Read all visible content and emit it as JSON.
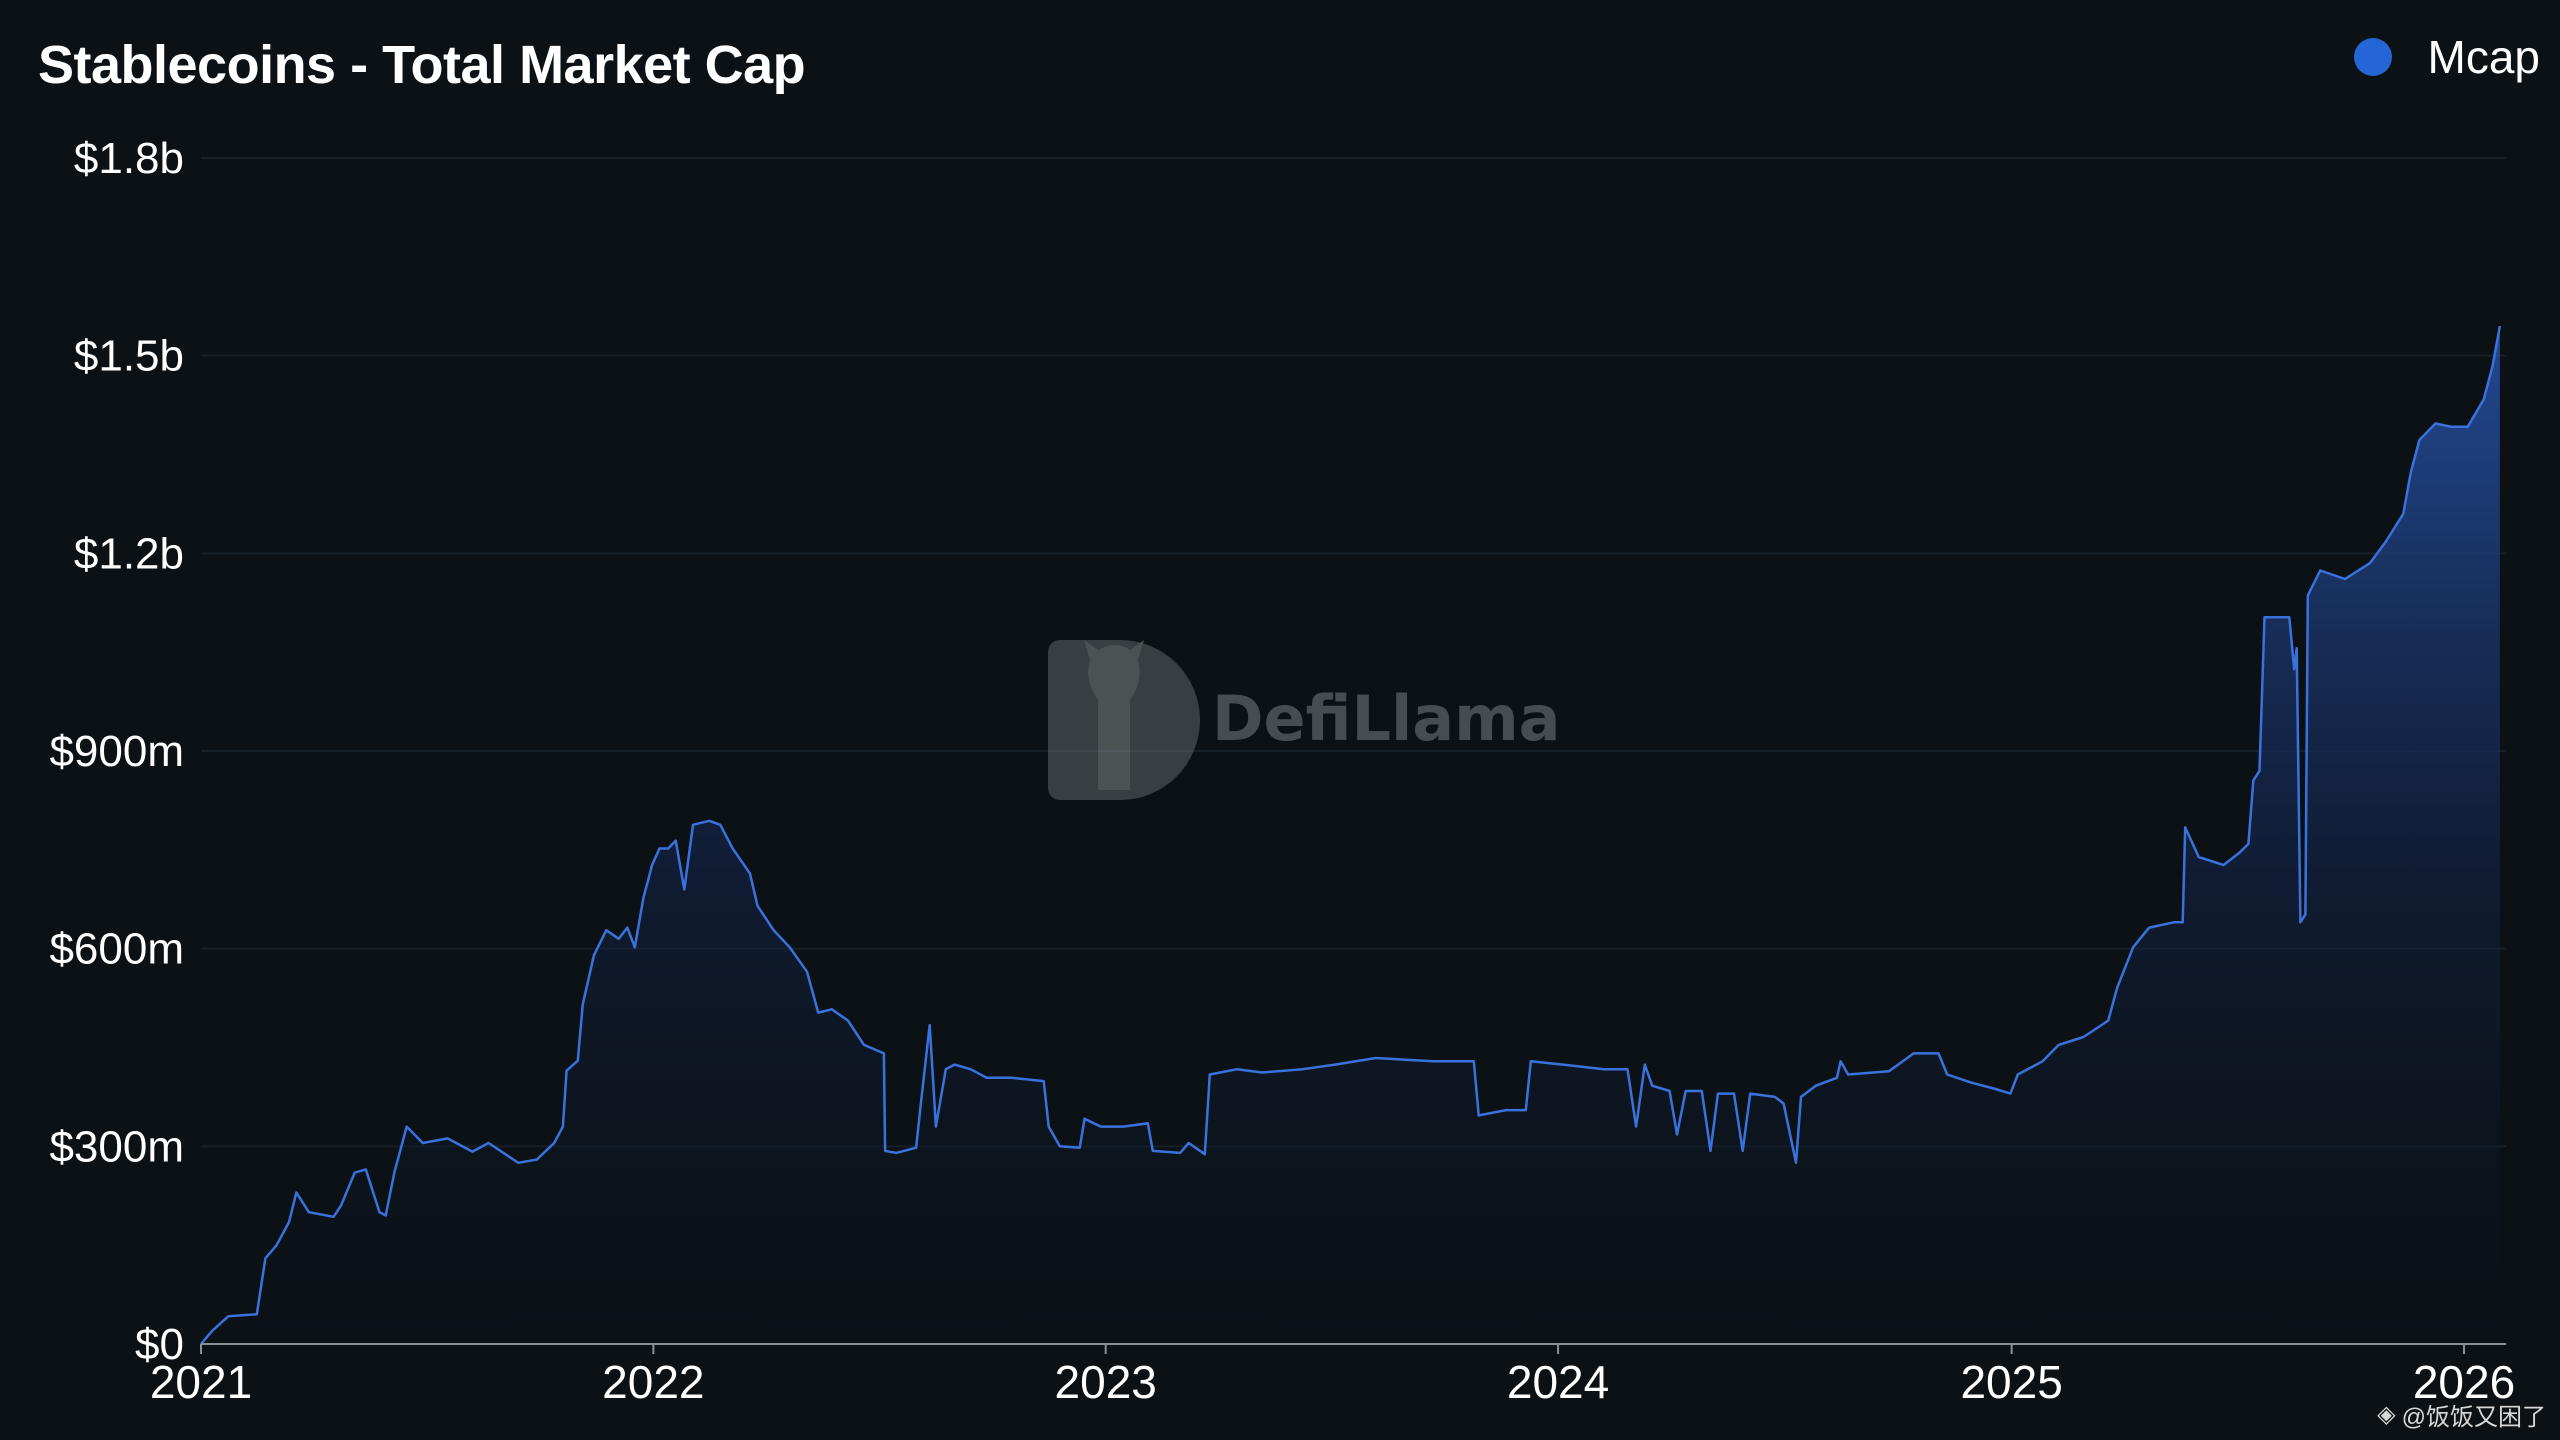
{
  "chart_data": {
    "type": "area",
    "title": "Stablecoins - Total Market Cap",
    "legend": {
      "position": "top-right",
      "entries": [
        "Mcap"
      ]
    },
    "series": [
      {
        "name": "Mcap",
        "unit": "USD millions",
        "points": [
          [
            "2021-01-01",
            0
          ],
          [
            "2021-01-10",
            20
          ],
          [
            "2021-01-23",
            42
          ],
          [
            "2021-02-15",
            45
          ],
          [
            "2021-02-22",
            130
          ],
          [
            "2021-03-03",
            150
          ],
          [
            "2021-03-13",
            185
          ],
          [
            "2021-03-19",
            230
          ],
          [
            "2021-03-29",
            200
          ],
          [
            "2021-04-18",
            193
          ],
          [
            "2021-04-24",
            210
          ],
          [
            "2021-05-05",
            260
          ],
          [
            "2021-05-14",
            265
          ],
          [
            "2021-05-25",
            200
          ],
          [
            "2021-05-30",
            195
          ],
          [
            "2021-06-06",
            260
          ],
          [
            "2021-06-16",
            330
          ],
          [
            "2021-06-29",
            305
          ],
          [
            "2021-07-19",
            312
          ],
          [
            "2021-08-08",
            292
          ],
          [
            "2021-08-21",
            305
          ],
          [
            "2021-09-14",
            275
          ],
          [
            "2021-09-29",
            280
          ],
          [
            "2021-10-13",
            305
          ],
          [
            "2021-10-20",
            330
          ],
          [
            "2021-10-23",
            415
          ],
          [
            "2021-11-01",
            430
          ],
          [
            "2021-11-05",
            515
          ],
          [
            "2021-11-14",
            590
          ],
          [
            "2021-11-24",
            628
          ],
          [
            "2021-12-04",
            615
          ],
          [
            "2021-12-11",
            632
          ],
          [
            "2021-12-17",
            602
          ],
          [
            "2021-12-24",
            677
          ],
          [
            "2021-12-31",
            727
          ],
          [
            "2022-01-06",
            752
          ],
          [
            "2022-01-13",
            752
          ],
          [
            "2022-01-19",
            764
          ],
          [
            "2022-01-26",
            690
          ],
          [
            "2022-02-02",
            788
          ],
          [
            "2022-02-15",
            794
          ],
          [
            "2022-02-24",
            788
          ],
          [
            "2022-03-06",
            752
          ],
          [
            "2022-03-20",
            714
          ],
          [
            "2022-03-26",
            665
          ],
          [
            "2022-04-08",
            628
          ],
          [
            "2022-04-21",
            602
          ],
          [
            "2022-05-05",
            565
          ],
          [
            "2022-05-14",
            503
          ],
          [
            "2022-05-25",
            508
          ],
          [
            "2022-06-07",
            491
          ],
          [
            "2022-06-20",
            454
          ],
          [
            "2022-07-06",
            441
          ],
          [
            "2022-07-07",
            293
          ],
          [
            "2022-07-16",
            290
          ],
          [
            "2022-08-01",
            298
          ],
          [
            "2022-08-05",
            367
          ],
          [
            "2022-08-12",
            484
          ],
          [
            "2022-08-17",
            330
          ],
          [
            "2022-08-25",
            417
          ],
          [
            "2022-09-01",
            424
          ],
          [
            "2022-09-14",
            417
          ],
          [
            "2022-09-27",
            404
          ],
          [
            "2022-10-17",
            404
          ],
          [
            "2022-11-12",
            399
          ],
          [
            "2022-11-16",
            330
          ],
          [
            "2022-11-25",
            300
          ],
          [
            "2022-12-11",
            298
          ],
          [
            "2022-12-15",
            342
          ],
          [
            "2022-12-28",
            330
          ],
          [
            "2023-01-15",
            330
          ],
          [
            "2023-02-04",
            335
          ],
          [
            "2023-02-08",
            293
          ],
          [
            "2023-03-02",
            290
          ],
          [
            "2023-03-09",
            305
          ],
          [
            "2023-03-22",
            288
          ],
          [
            "2023-03-26",
            409
          ],
          [
            "2023-04-17",
            417
          ],
          [
            "2023-05-07",
            412
          ],
          [
            "2023-06-09",
            417
          ],
          [
            "2023-07-05",
            424
          ],
          [
            "2023-08-07",
            434
          ],
          [
            "2023-09-22",
            429
          ],
          [
            "2023-10-25",
            429
          ],
          [
            "2023-10-29",
            347
          ],
          [
            "2023-11-20",
            355
          ],
          [
            "2023-12-06",
            355
          ],
          [
            "2023-12-10",
            429
          ],
          [
            "2024-01-05",
            424
          ],
          [
            "2024-02-07",
            417
          ],
          [
            "2024-02-26",
            417
          ],
          [
            "2024-03-04",
            330
          ],
          [
            "2024-03-11",
            424
          ],
          [
            "2024-03-17",
            392
          ],
          [
            "2024-03-31",
            384
          ],
          [
            "2024-04-06",
            318
          ],
          [
            "2024-04-13",
            384
          ],
          [
            "2024-04-26",
            384
          ],
          [
            "2024-05-03",
            293
          ],
          [
            "2024-05-09",
            380
          ],
          [
            "2024-05-22",
            380
          ],
          [
            "2024-05-29",
            293
          ],
          [
            "2024-06-04",
            380
          ],
          [
            "2024-06-24",
            375
          ],
          [
            "2024-07-01",
            365
          ],
          [
            "2024-07-11",
            275
          ],
          [
            "2024-07-15",
            375
          ],
          [
            "2024-07-27",
            392
          ],
          [
            "2024-08-13",
            404
          ],
          [
            "2024-08-16",
            429
          ],
          [
            "2024-08-22",
            409
          ],
          [
            "2024-09-24",
            414
          ],
          [
            "2024-10-14",
            441
          ],
          [
            "2024-11-03",
            441
          ],
          [
            "2024-11-10",
            409
          ],
          [
            "2024-11-29",
            397
          ],
          [
            "2024-12-19",
            387
          ],
          [
            "2024-12-31",
            380
          ],
          [
            "2025-01-06",
            409
          ],
          [
            "2025-01-26",
            429
          ],
          [
            "2025-02-08",
            454
          ],
          [
            "2025-02-28",
            466
          ],
          [
            "2025-03-20",
            491
          ],
          [
            "2025-03-27",
            540
          ],
          [
            "2025-04-09",
            602
          ],
          [
            "2025-04-22",
            632
          ],
          [
            "2025-05-12",
            640
          ],
          [
            "2025-05-19",
            640
          ],
          [
            "2025-05-21",
            784
          ],
          [
            "2025-06-01",
            739
          ],
          [
            "2025-06-21",
            727
          ],
          [
            "2025-07-04",
            746
          ],
          [
            "2025-07-11",
            759
          ],
          [
            "2025-07-15",
            855
          ],
          [
            "2025-07-20",
            870
          ],
          [
            "2025-07-24",
            1103
          ],
          [
            "2025-08-06",
            1103
          ],
          [
            "2025-08-13",
            1103
          ],
          [
            "2025-08-17",
            1024
          ],
          [
            "2025-08-19",
            1056
          ],
          [
            "2025-08-22",
            640
          ],
          [
            "2025-08-26",
            652
          ],
          [
            "2025-08-28",
            1136
          ],
          [
            "2025-09-07",
            1174
          ],
          [
            "2025-09-27",
            1161
          ],
          [
            "2025-10-17",
            1185
          ],
          [
            "2025-10-30",
            1218
          ],
          [
            "2025-11-13",
            1260
          ],
          [
            "2025-11-19",
            1322
          ],
          [
            "2025-11-26",
            1372
          ],
          [
            "2025-12-09",
            1397
          ],
          [
            "2025-12-22",
            1392
          ],
          [
            "2026-01-04",
            1392
          ],
          [
            "2026-01-17",
            1434
          ],
          [
            "2026-01-24",
            1484
          ],
          [
            "2026-01-30",
            1545
          ]
        ]
      }
    ],
    "y_ticks": [
      "$0",
      "$300m",
      "$600m",
      "$900m",
      "$1.2b",
      "$1.5b",
      "$1.8b"
    ],
    "y_tick_values": [
      0,
      300,
      600,
      900,
      1200,
      1500,
      1800
    ],
    "ylim": [
      0,
      1800
    ],
    "x_ticks": [
      "2021",
      "2022",
      "2023",
      "2024",
      "2025",
      "2026"
    ],
    "xlim": [
      "2021-01-01",
      "2026-02-04"
    ],
    "grid": "horizontal",
    "colors": {
      "line": "#3a72dd",
      "legend_dot": "#2566d6",
      "background": "#0b1115"
    }
  },
  "watermark": {
    "logo_text": "DefiLlama",
    "credit": "@饭饭又困了"
  }
}
